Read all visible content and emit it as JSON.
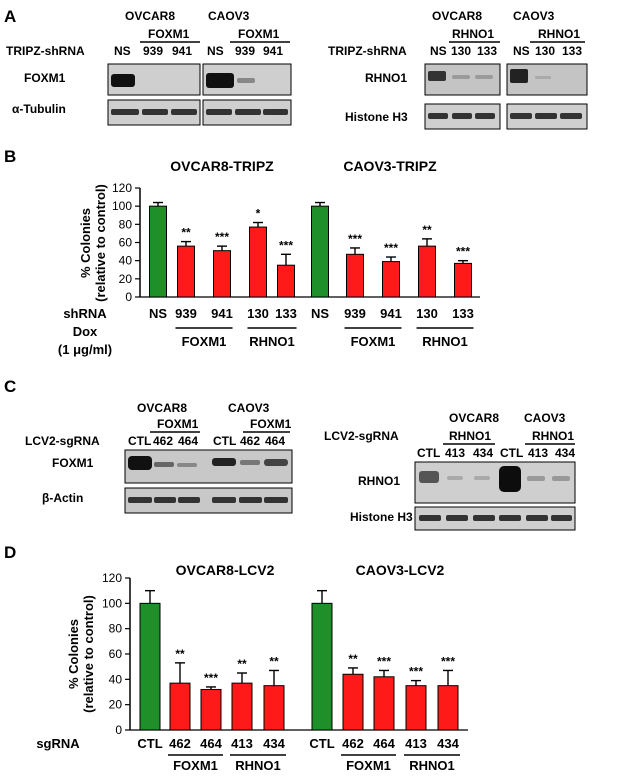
{
  "panel_letters": {
    "a": "A",
    "b": "B",
    "c": "C",
    "d": "D"
  },
  "colors": {
    "control_bar": "#1f8f2a",
    "knockdown_bar": "#ff1a1a",
    "blot_bg": "#c8c8c8",
    "band": "#1a1a1a"
  },
  "panel_a": {
    "left": {
      "cell_lines": [
        "OVCAR8",
        "CAOV3"
      ],
      "target": "FOXM1",
      "row_label": "TRIPZ-shRNA",
      "lanes": [
        "NS",
        "939",
        "941",
        "NS",
        "939",
        "941"
      ],
      "blots": [
        "FOXM1",
        "α-Tubulin"
      ]
    },
    "right": {
      "cell_lines": [
        "OVCAR8",
        "CAOV3"
      ],
      "target": "RHNO1",
      "row_label": "TRIPZ-shRNA",
      "lanes": [
        "NS",
        "130",
        "133",
        "NS",
        "130",
        "133"
      ],
      "blots": [
        "RHNO1",
        "Histone H3"
      ]
    }
  },
  "panel_c": {
    "left": {
      "cell_lines": [
        "OVCAR8",
        "CAOV3"
      ],
      "target": "FOXM1",
      "row_label": "LCV2-sgRNA",
      "lanes": [
        "CTL",
        "462",
        "464",
        "CTL",
        "462",
        "464"
      ],
      "blots": [
        "FOXM1",
        "β-Actin"
      ]
    },
    "right": {
      "cell_lines": [
        "OVCAR8",
        "CAOV3"
      ],
      "target": "RHNO1",
      "row_label": "LCV2-sgRNA",
      "lanes": [
        "CTL",
        "413",
        "434",
        "CTL",
        "413",
        "434"
      ],
      "blots": [
        "RHNO1",
        "Histone H3"
      ]
    }
  },
  "chart_data": [
    {
      "type": "bar",
      "panel": "B",
      "ylabel": "% Colonies (relative to control)",
      "ylim": [
        0,
        120
      ],
      "yticks": [
        0,
        20,
        40,
        60,
        80,
        100,
        120
      ],
      "group_titles": [
        "OVCAR8-TRIPZ",
        "CAOV3-TRIPZ"
      ],
      "x_row_labels": [
        "shRNA",
        "Dox",
        "(1 μg/ml)"
      ],
      "categories": [
        "NS",
        "939",
        "941",
        "130",
        "133",
        "NS",
        "939",
        "941",
        "130",
        "133"
      ],
      "values": [
        100,
        56,
        51,
        77,
        35,
        100,
        47,
        39,
        56,
        37
      ],
      "errors": [
        4,
        5,
        5,
        5,
        12,
        4,
        7,
        5,
        8,
        3
      ],
      "significance": [
        "",
        "**",
        "***",
        "*",
        "***",
        "",
        "***",
        "***",
        "**",
        "***"
      ],
      "gene_groups": [
        {
          "label": "FOXM1",
          "from": 1,
          "to": 2
        },
        {
          "label": "RHNO1",
          "from": 3,
          "to": 4
        },
        {
          "label": "FOXM1",
          "from": 6,
          "to": 7
        },
        {
          "label": "RHNO1",
          "from": 8,
          "to": 9
        }
      ]
    },
    {
      "type": "bar",
      "panel": "D",
      "ylabel": "% Colonies (relative to control)",
      "ylim": [
        0,
        120
      ],
      "yticks": [
        0,
        20,
        40,
        60,
        80,
        100,
        120
      ],
      "group_titles": [
        "OVCAR8-LCV2",
        "CAOV3-LCV2"
      ],
      "x_row_labels": [
        "sgRNA"
      ],
      "categories": [
        "CTL",
        "462",
        "464",
        "413",
        "434",
        "CTL",
        "462",
        "464",
        "413",
        "434"
      ],
      "values": [
        100,
        37,
        32,
        37,
        35,
        100,
        44,
        42,
        35,
        35
      ],
      "errors": [
        10,
        16,
        2,
        8,
        12,
        10,
        5,
        5,
        4,
        12
      ],
      "significance": [
        "",
        "**",
        "***",
        "**",
        "**",
        "",
        "**",
        "***",
        "***",
        "***"
      ],
      "gene_groups": [
        {
          "label": "FOXM1",
          "from": 1,
          "to": 2
        },
        {
          "label": "RHNO1",
          "from": 3,
          "to": 4
        },
        {
          "label": "FOXM1",
          "from": 6,
          "to": 7
        },
        {
          "label": "RHNO1",
          "from": 8,
          "to": 9
        }
      ]
    }
  ]
}
